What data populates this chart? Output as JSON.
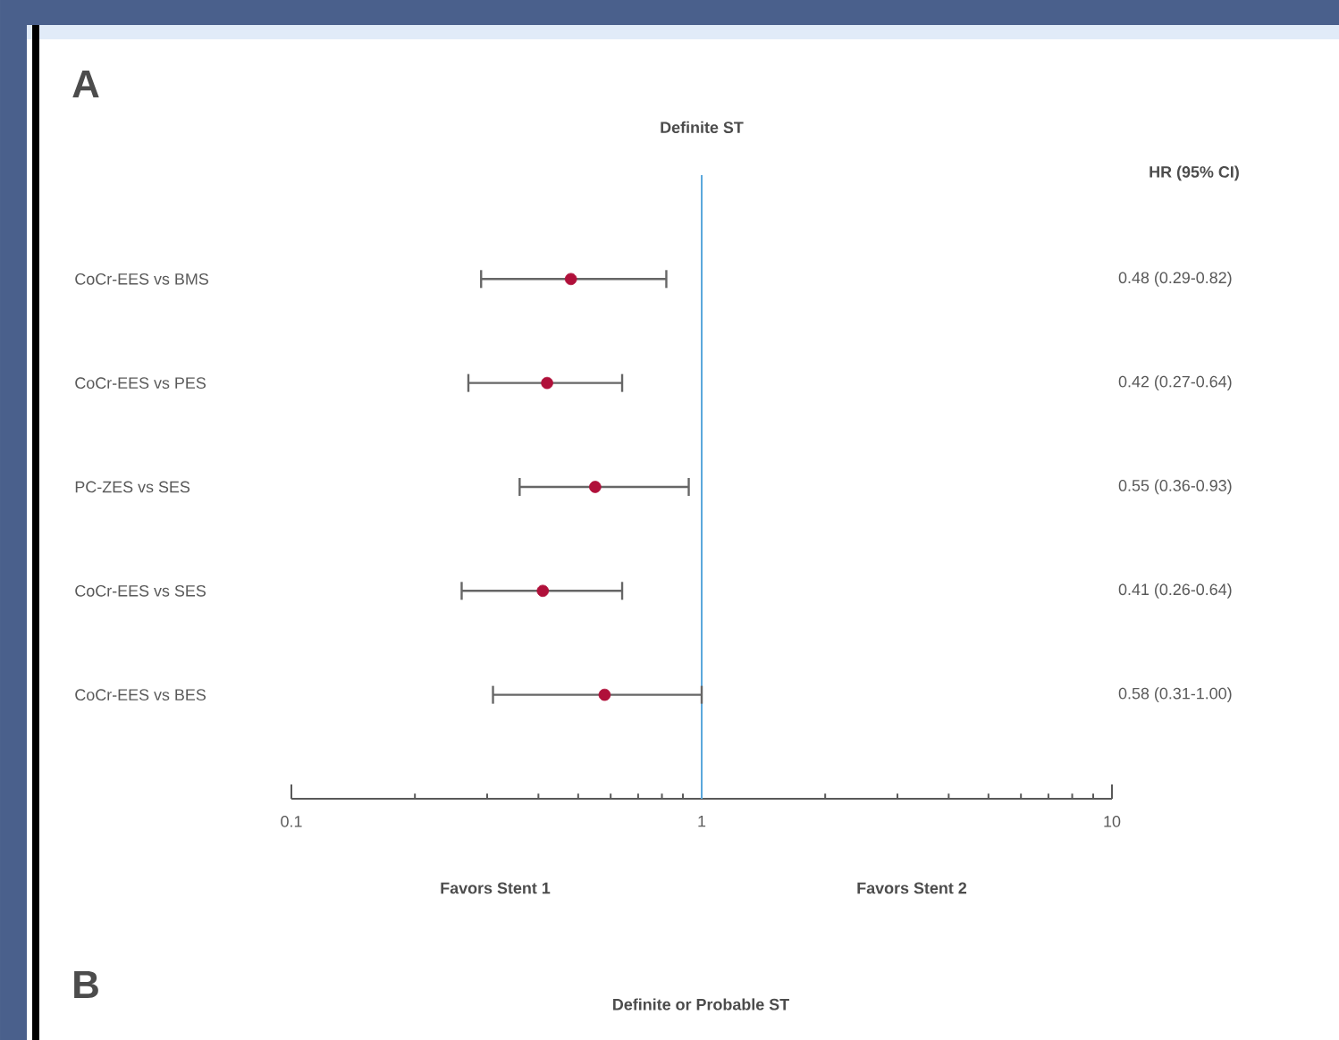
{
  "chart_data": {
    "type": "scatter",
    "orientation": "horizontal",
    "title": "Definite ST",
    "categories": [
      "CoCr-EES vs BMS",
      "CoCr-EES vs PES",
      "PC-ZES vs SES",
      "CoCr-EES vs SES",
      "CoCr-EES vs BES"
    ],
    "values": [
      0.48,
      0.42,
      0.55,
      0.41,
      0.58
    ],
    "errors": [
      [
        0.29,
        0.82
      ],
      [
        0.27,
        0.64
      ],
      [
        0.36,
        0.93
      ],
      [
        0.26,
        0.64
      ],
      [
        0.31,
        1.0
      ]
    ],
    "value_labels": [
      "0.48 (0.29-0.82)",
      "0.42 (0.27-0.64)",
      "0.55 (0.36-0.93)",
      "0.41 (0.26-0.64)",
      "0.58 (0.31-1.00)"
    ],
    "color": "#b0103a",
    "log": "x",
    "xlim": [
      0.1,
      10
    ],
    "xticks": [
      0.1,
      1,
      10
    ],
    "ref_lines": [
      {
        "axis": "x",
        "value": 1,
        "color": "#5aa7dc"
      }
    ],
    "annotations": [
      "A",
      "HR (95% CI)",
      "Favors Stent 1",
      "Favors Stent 2",
      "B",
      "Definite or Probable ST"
    ]
  }
}
